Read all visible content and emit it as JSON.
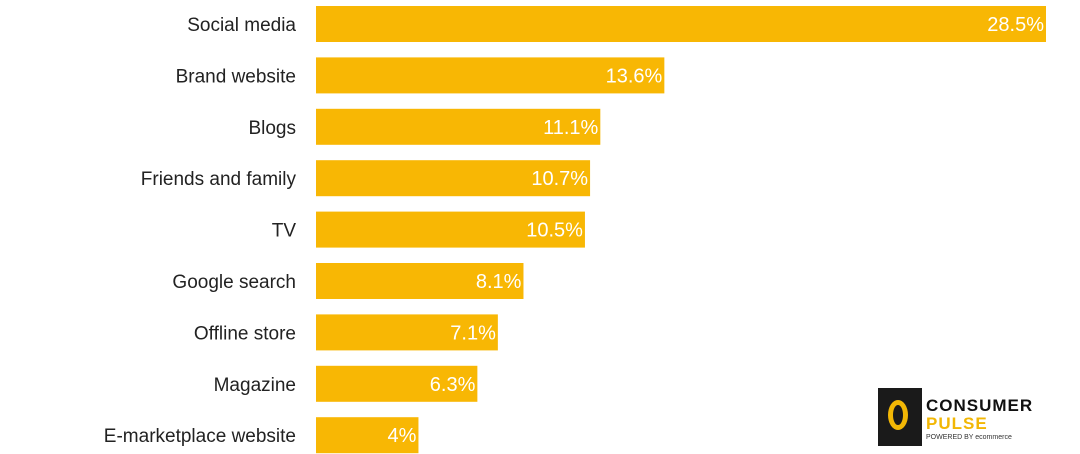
{
  "chart_data": {
    "type": "bar",
    "orientation": "horizontal",
    "categories": [
      "Social media",
      "Brand website",
      "Blogs",
      "Friends and family",
      "TV",
      "Google search",
      "Offline store",
      "Magazine",
      "E-marketplace website"
    ],
    "values": [
      28.5,
      13.6,
      11.1,
      10.7,
      10.5,
      8.1,
      7.1,
      6.3,
      4
    ],
    "value_labels": [
      "28.5%",
      "13.6%",
      "11.1%",
      "10.7%",
      "10.5%",
      "8.1%",
      "7.1%",
      "6.3%",
      "4%"
    ],
    "title": "",
    "xlabel": "",
    "ylabel": "",
    "xlim": [
      0,
      28.5
    ],
    "grid": false,
    "bar_color": "#f8b704"
  },
  "watermark": {
    "brand": "CONSUMER",
    "sub": "PULSE",
    "powered": "POWERED BY ecommerce"
  }
}
